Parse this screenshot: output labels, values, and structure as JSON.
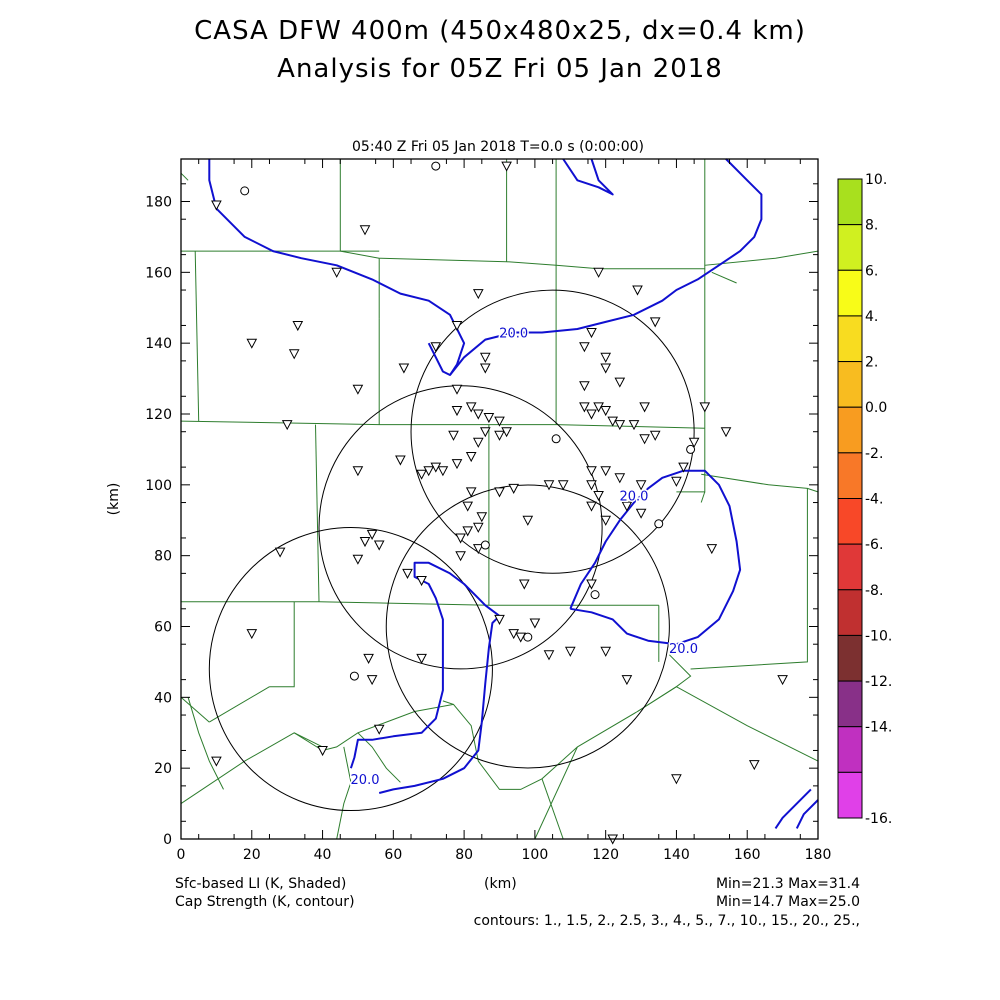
{
  "header": {
    "title_line1": "CASA DFW 400m (450x480x25, dx=0.4 km)",
    "title_line2": "Analysis for 05Z Fri 05 Jan 2018",
    "subtitle": "05:40 Z Fri 05 Jan 2018    T=0.0 s (0:00:00)"
  },
  "chart_data": {
    "type": "map",
    "xlabel": "(km)",
    "ylabel": "(km)",
    "xlim": [
      0,
      180
    ],
    "ylim": [
      0,
      192
    ],
    "xticks": [
      0,
      20,
      40,
      60,
      80,
      100,
      120,
      140,
      160,
      180
    ],
    "yticks": [
      0,
      20,
      40,
      60,
      80,
      100,
      120,
      140,
      160,
      180
    ],
    "colorbar": {
      "labels": [
        "10.",
        "8.",
        "6.",
        "4.",
        "2.",
        "0.0",
        "-2.",
        "-4.",
        "-6.",
        "-8.",
        "-10.",
        "-12.",
        "-14.",
        "-16."
      ],
      "colors": [
        "#a8e01e",
        "#d0f020",
        "#f8fc18",
        "#f8dc20",
        "#f8bc20",
        "#f89c20",
        "#f87828",
        "#f84828",
        "#e03838",
        "#c03030",
        "#7c3030",
        "#883088",
        "#c030c0",
        "#e040e8"
      ]
    },
    "contour_labels": [
      {
        "text": "20.0",
        "x": 94,
        "y": 143
      },
      {
        "text": "20.0",
        "x": 128,
        "y": 97
      },
      {
        "text": "20.0",
        "x": 142,
        "y": 54
      },
      {
        "text": "20.0",
        "x": 52,
        "y": 17
      }
    ],
    "radar_rings": [
      {
        "x": 105,
        "y": 115,
        "r": 40
      },
      {
        "x": 79,
        "y": 88,
        "r": 40
      },
      {
        "x": 98,
        "y": 60,
        "r": 40
      },
      {
        "x": 48,
        "y": 48,
        "r": 40
      }
    ],
    "contour_paths": [
      [
        [
          8,
          192
        ],
        [
          8,
          186
        ],
        [
          10,
          178
        ],
        [
          18,
          170
        ],
        [
          26,
          166
        ],
        [
          34,
          164
        ],
        [
          44,
          162
        ],
        [
          54,
          158
        ],
        [
          62,
          154
        ],
        [
          70,
          152
        ],
        [
          76,
          148
        ],
        [
          80,
          140
        ],
        [
          78,
          134
        ],
        [
          76,
          131
        ],
        [
          74,
          132
        ],
        [
          72,
          136
        ],
        [
          70,
          140
        ]
      ],
      [
        [
          76,
          131
        ],
        [
          80,
          136
        ],
        [
          86,
          141
        ],
        [
          94,
          143
        ],
        [
          102,
          143
        ],
        [
          112,
          144
        ],
        [
          120,
          146
        ],
        [
          128,
          148
        ],
        [
          136,
          152
        ],
        [
          140,
          155
        ],
        [
          146,
          158
        ],
        [
          152,
          162
        ],
        [
          158,
          166
        ],
        [
          162,
          170
        ],
        [
          164,
          175
        ],
        [
          164,
          182
        ],
        [
          160,
          186
        ],
        [
          154,
          192
        ]
      ],
      [
        [
          108,
          192
        ],
        [
          112,
          186
        ],
        [
          118,
          184
        ],
        [
          122,
          182
        ],
        [
          118,
          186
        ],
        [
          116,
          192
        ]
      ],
      [
        [
          110,
          65
        ],
        [
          113,
          72
        ],
        [
          117,
          78
        ],
        [
          120,
          84
        ],
        [
          124,
          90
        ],
        [
          128,
          95
        ],
        [
          132,
          99
        ],
        [
          136,
          102
        ],
        [
          142,
          104
        ],
        [
          148,
          104
        ],
        [
          152,
          100
        ],
        [
          155,
          94
        ],
        [
          157,
          84
        ],
        [
          158,
          76
        ],
        [
          156,
          70
        ],
        [
          152,
          62
        ],
        [
          146,
          57
        ],
        [
          140,
          55
        ],
        [
          132,
          56
        ],
        [
          126,
          58
        ],
        [
          122,
          62
        ],
        [
          116,
          64
        ],
        [
          110,
          65
        ]
      ],
      [
        [
          56,
          13
        ],
        [
          60,
          14
        ],
        [
          66,
          15
        ],
        [
          74,
          17
        ],
        [
          80,
          20
        ],
        [
          84,
          25
        ],
        [
          85,
          33
        ],
        [
          86,
          44
        ],
        [
          87,
          54
        ],
        [
          88,
          61
        ],
        [
          90,
          63
        ],
        [
          86,
          66
        ],
        [
          84,
          68
        ],
        [
          80,
          72
        ],
        [
          76,
          75
        ],
        [
          70,
          78
        ],
        [
          66,
          78
        ],
        [
          66,
          74
        ],
        [
          70,
          72
        ],
        [
          72,
          68
        ],
        [
          74,
          62
        ],
        [
          74,
          52
        ],
        [
          74,
          42
        ],
        [
          72,
          34
        ],
        [
          68,
          30
        ],
        [
          60,
          29
        ],
        [
          54,
          28
        ],
        [
          50,
          28
        ],
        [
          49,
          23
        ],
        [
          48,
          20
        ]
      ],
      [
        [
          178,
          14
        ],
        [
          174,
          10
        ],
        [
          170,
          6
        ],
        [
          168,
          3
        ]
      ],
      [
        [
          180,
          11
        ],
        [
          176,
          7
        ],
        [
          174,
          3
        ]
      ]
    ],
    "county_lines": [
      [
        [
          0,
          188
        ],
        [
          2,
          186
        ]
      ],
      [
        [
          0,
          166
        ],
        [
          56,
          166
        ]
      ],
      [
        [
          45,
          192
        ],
        [
          45,
          166
        ]
      ],
      [
        [
          45,
          166
        ],
        [
          56,
          164
        ]
      ],
      [
        [
          56,
          164
        ],
        [
          56,
          147
        ]
      ],
      [
        [
          56,
          164
        ],
        [
          92,
          163
        ],
        [
          106,
          162
        ],
        [
          118,
          161
        ],
        [
          148,
          161
        ],
        [
          148,
          162
        ],
        [
          168,
          164
        ],
        [
          180,
          166
        ]
      ],
      [
        [
          92,
          192
        ],
        [
          92,
          163
        ]
      ],
      [
        [
          106,
          192
        ],
        [
          106,
          162
        ]
      ],
      [
        [
          148,
          192
        ],
        [
          148,
          162
        ]
      ],
      [
        [
          150,
          160
        ],
        [
          157,
          157
        ]
      ],
      [
        [
          4,
          166
        ],
        [
          5,
          118
        ]
      ],
      [
        [
          0,
          118
        ],
        [
          56,
          117
        ],
        [
          106,
          117
        ],
        [
          148,
          116
        ]
      ],
      [
        [
          56,
          147
        ],
        [
          56,
          117
        ]
      ],
      [
        [
          106,
          162
        ],
        [
          106,
          117
        ]
      ],
      [
        [
          148,
          161
        ],
        [
          148,
          116
        ]
      ],
      [
        [
          148,
          116
        ],
        [
          148,
          98
        ],
        [
          140,
          98
        ]
      ],
      [
        [
          38,
          117
        ],
        [
          39,
          67
        ]
      ],
      [
        [
          39,
          67
        ],
        [
          30,
          67
        ],
        [
          0,
          67
        ]
      ],
      [
        [
          39,
          67
        ],
        [
          87,
          66
        ],
        [
          121,
          66
        ],
        [
          135,
          66
        ]
      ],
      [
        [
          87,
          117
        ],
        [
          87,
          66
        ]
      ],
      [
        [
          135,
          66
        ],
        [
          135,
          50
        ]
      ],
      [
        [
          148,
          98
        ],
        [
          147,
          95
        ]
      ],
      [
        [
          147,
          103
        ],
        [
          166,
          100
        ],
        [
          177,
          99
        ],
        [
          180,
          98
        ]
      ],
      [
        [
          177,
          99
        ],
        [
          177,
          50
        ],
        [
          144,
          48
        ]
      ],
      [
        [
          138,
          52
        ],
        [
          144,
          46
        ],
        [
          140,
          43
        ],
        [
          129,
          36
        ],
        [
          112,
          26
        ],
        [
          102,
          17
        ],
        [
          96,
          14
        ],
        [
          90,
          14
        ],
        [
          84,
          22
        ],
        [
          82,
          32
        ],
        [
          77,
          38
        ],
        [
          74,
          39
        ]
      ],
      [
        [
          102,
          17
        ],
        [
          108,
          0
        ]
      ],
      [
        [
          112,
          26
        ],
        [
          100,
          0
        ]
      ],
      [
        [
          129,
          36
        ],
        [
          140,
          43
        ],
        [
          160,
          32
        ],
        [
          180,
          22
        ]
      ],
      [
        [
          0,
          40
        ],
        [
          8,
          33
        ]
      ],
      [
        [
          8,
          33
        ],
        [
          25,
          43
        ]
      ],
      [
        [
          25,
          43
        ],
        [
          32,
          43
        ],
        [
          32,
          67
        ]
      ],
      [
        [
          0,
          10
        ],
        [
          18,
          22
        ],
        [
          32,
          30
        ],
        [
          40,
          26
        ]
      ],
      [
        [
          32,
          30
        ],
        [
          40,
          25
        ],
        [
          44,
          26
        ],
        [
          50,
          30
        ],
        [
          58,
          33
        ],
        [
          66,
          36
        ],
        [
          77,
          38
        ]
      ],
      [
        [
          46,
          26
        ],
        [
          48,
          16
        ],
        [
          46,
          10
        ],
        [
          44,
          0
        ]
      ],
      [
        [
          50,
          30
        ],
        [
          54,
          26
        ],
        [
          58,
          20
        ],
        [
          62,
          16
        ]
      ],
      [
        [
          2,
          40
        ],
        [
          5,
          30
        ],
        [
          8,
          22
        ],
        [
          12,
          14
        ]
      ]
    ],
    "stations_triangle": [
      [
        10,
        179
      ],
      [
        52,
        172
      ],
      [
        44,
        160
      ],
      [
        33,
        145
      ],
      [
        20,
        140
      ],
      [
        32,
        137
      ],
      [
        50,
        127
      ],
      [
        63,
        133
      ],
      [
        84,
        154
      ],
      [
        78,
        145
      ],
      [
        72,
        139
      ],
      [
        86,
        136
      ],
      [
        86,
        133
      ],
      [
        78,
        127
      ],
      [
        30,
        117
      ],
      [
        78,
        121
      ],
      [
        82,
        122
      ],
      [
        84,
        120
      ],
      [
        87,
        119
      ],
      [
        90,
        118
      ],
      [
        86,
        115
      ],
      [
        90,
        114
      ],
      [
        92,
        115
      ],
      [
        84,
        112
      ],
      [
        77,
        114
      ],
      [
        82,
        108
      ],
      [
        78,
        106
      ],
      [
        74,
        104
      ],
      [
        72,
        105
      ],
      [
        70,
        104
      ],
      [
        68,
        103
      ],
      [
        62,
        107
      ],
      [
        50,
        104
      ],
      [
        82,
        98
      ],
      [
        90,
        98
      ],
      [
        94,
        99
      ],
      [
        98,
        90
      ],
      [
        81,
        94
      ],
      [
        85,
        91
      ],
      [
        84,
        88
      ],
      [
        81,
        87
      ],
      [
        79,
        85
      ],
      [
        79,
        80
      ],
      [
        84,
        82
      ],
      [
        64,
        75
      ],
      [
        68,
        73
      ],
      [
        97,
        72
      ],
      [
        50,
        79
      ],
      [
        52,
        84
      ],
      [
        54,
        86
      ],
      [
        56,
        83
      ],
      [
        28,
        81
      ],
      [
        116,
        72
      ],
      [
        104,
        100
      ],
      [
        116,
        94
      ],
      [
        118,
        97
      ],
      [
        120,
        90
      ],
      [
        116,
        104
      ],
      [
        120,
        104
      ],
      [
        124,
        102
      ],
      [
        126,
        94
      ],
      [
        130,
        92
      ],
      [
        130,
        100
      ],
      [
        118,
        160
      ],
      [
        129,
        155
      ],
      [
        134,
        146
      ],
      [
        116,
        143
      ],
      [
        114,
        139
      ],
      [
        120,
        136
      ],
      [
        120,
        133
      ],
      [
        124,
        129
      ],
      [
        114,
        128
      ],
      [
        118,
        122
      ],
      [
        114,
        122
      ],
      [
        116,
        120
      ],
      [
        120,
        121
      ],
      [
        122,
        118
      ],
      [
        124,
        117
      ],
      [
        128,
        117
      ],
      [
        131,
        113
      ],
      [
        134,
        114
      ],
      [
        131,
        122
      ],
      [
        148,
        122
      ],
      [
        154,
        115
      ],
      [
        142,
        105
      ],
      [
        140,
        101
      ],
      [
        145,
        112
      ],
      [
        150,
        82
      ],
      [
        94,
        58
      ],
      [
        90,
        62
      ],
      [
        100,
        61
      ],
      [
        110,
        53
      ],
      [
        120,
        53
      ],
      [
        126,
        45
      ],
      [
        170,
        45
      ],
      [
        162,
        21
      ],
      [
        140,
        17
      ],
      [
        122,
        0
      ],
      [
        53,
        51
      ],
      [
        54,
        45
      ],
      [
        56,
        31
      ],
      [
        40,
        25
      ],
      [
        10,
        22
      ],
      [
        20,
        58
      ],
      [
        68,
        51
      ],
      [
        104,
        52
      ],
      [
        96,
        57
      ],
      [
        92,
        190
      ],
      [
        108,
        100
      ],
      [
        116,
        100
      ]
    ],
    "stations_circle": [
      [
        18,
        183
      ],
      [
        72,
        190
      ],
      [
        106,
        113
      ],
      [
        144,
        110
      ],
      [
        135,
        89
      ],
      [
        86,
        83
      ],
      [
        117,
        69
      ],
      [
        98,
        57
      ],
      [
        49,
        46
      ]
    ]
  },
  "footer": {
    "left_line1": "Sfc-based LI (K, Shaded)",
    "left_line2": "Cap Strength (K, contour)",
    "center": "(km)",
    "right_line1": "Min=21.3  Max=31.4",
    "right_line2": "Min=14.7  Max=25.0",
    "contours": "contours: 1., 1.5, 2., 2.5, 3., 4., 5., 7., 10., 15., 20., 25.,"
  }
}
